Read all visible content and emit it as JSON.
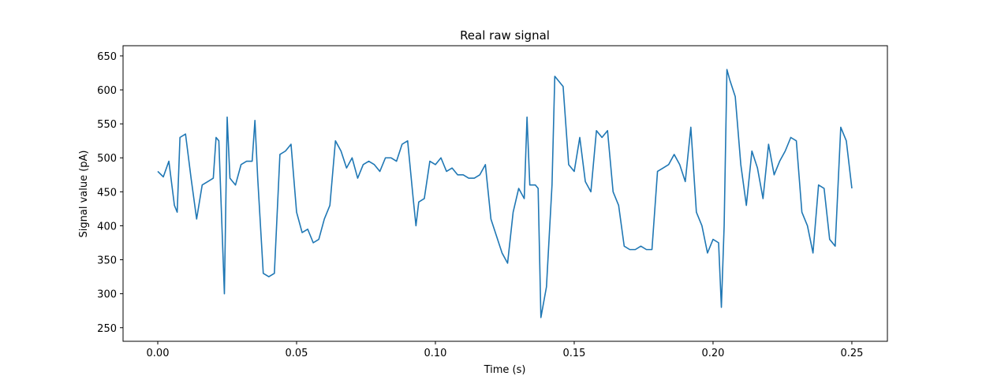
{
  "chart_data": {
    "type": "line",
    "title": "Real raw signal",
    "x_label": "Time (s)",
    "y_label": "Signal value (pA)",
    "x": [
      0.0,
      0.002,
      0.004,
      0.006,
      0.007,
      0.008,
      0.01,
      0.012,
      0.014,
      0.016,
      0.018,
      0.02,
      0.021,
      0.022,
      0.024,
      0.025,
      0.026,
      0.028,
      0.03,
      0.032,
      0.034,
      0.035,
      0.036,
      0.038,
      0.04,
      0.042,
      0.044,
      0.046,
      0.048,
      0.05,
      0.052,
      0.054,
      0.056,
      0.058,
      0.06,
      0.062,
      0.064,
      0.066,
      0.068,
      0.07,
      0.072,
      0.074,
      0.076,
      0.078,
      0.08,
      0.082,
      0.084,
      0.086,
      0.088,
      0.09,
      0.092,
      0.093,
      0.094,
      0.096,
      0.098,
      0.1,
      0.102,
      0.104,
      0.106,
      0.108,
      0.11,
      0.112,
      0.114,
      0.116,
      0.118,
      0.12,
      0.122,
      0.124,
      0.126,
      0.128,
      0.13,
      0.132,
      0.133,
      0.134,
      0.136,
      0.137,
      0.138,
      0.14,
      0.142,
      0.143,
      0.144,
      0.146,
      0.148,
      0.15,
      0.152,
      0.154,
      0.156,
      0.158,
      0.16,
      0.162,
      0.164,
      0.166,
      0.168,
      0.17,
      0.172,
      0.174,
      0.176,
      0.178,
      0.18,
      0.182,
      0.184,
      0.186,
      0.188,
      0.19,
      0.192,
      0.194,
      0.196,
      0.198,
      0.2,
      0.202,
      0.203,
      0.204,
      0.205,
      0.206,
      0.208,
      0.21,
      0.212,
      0.214,
      0.216,
      0.218,
      0.22,
      0.222,
      0.224,
      0.226,
      0.228,
      0.23,
      0.232,
      0.234,
      0.236,
      0.238,
      0.24,
      0.242,
      0.244,
      0.246,
      0.248,
      0.25
    ],
    "series": [
      {
        "name": "signal",
        "color": "#1f77b4",
        "values": [
          480,
          472,
          495,
          430,
          420,
          530,
          535,
          470,
          410,
          460,
          465,
          470,
          530,
          525,
          300,
          560,
          470,
          460,
          490,
          495,
          495,
          555,
          470,
          330,
          325,
          330,
          505,
          510,
          520,
          420,
          390,
          395,
          375,
          380,
          410,
          430,
          525,
          510,
          485,
          500,
          470,
          490,
          495,
          490,
          480,
          500,
          500,
          495,
          520,
          525,
          440,
          400,
          435,
          440,
          495,
          490,
          500,
          480,
          485,
          475,
          475,
          470,
          470,
          475,
          490,
          410,
          385,
          360,
          345,
          420,
          455,
          440,
          560,
          460,
          460,
          455,
          265,
          310,
          460,
          620,
          615,
          605,
          490,
          480,
          530,
          465,
          450,
          540,
          530,
          540,
          450,
          430,
          370,
          365,
          365,
          370,
          365,
          365,
          480,
          485,
          490,
          505,
          490,
          465,
          545,
          420,
          400,
          360,
          380,
          375,
          280,
          400,
          630,
          615,
          590,
          490,
          430,
          510,
          485,
          440,
          520,
          475,
          495,
          510,
          530,
          525,
          420,
          400,
          360,
          460,
          455,
          380,
          370,
          545,
          525,
          455
        ]
      }
    ],
    "xlim": [
      -0.0125,
      0.2628
    ],
    "ylim": [
      230,
      665
    ],
    "xticks": [
      {
        "value": 0,
        "label": "0.00"
      },
      0.05,
      {
        "value": 0.1,
        "label": "0.10"
      },
      0.15,
      {
        "value": 0.2,
        "label": "0.20"
      },
      0.25
    ],
    "yticks": [
      250,
      300,
      350,
      400,
      450,
      500,
      550,
      600,
      650
    ]
  }
}
